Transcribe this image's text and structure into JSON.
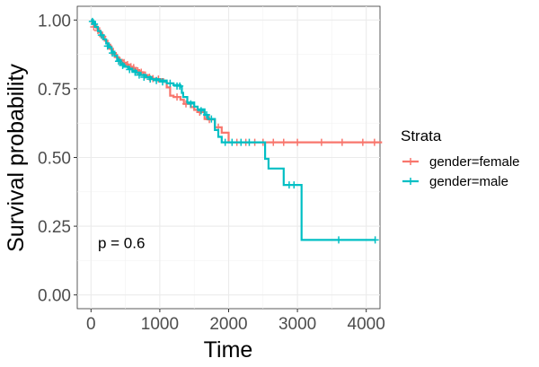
{
  "chart_data": {
    "type": "line",
    "title": "",
    "xlabel": "Time",
    "ylabel": "Survival probability",
    "xlim": [
      -200,
      4200
    ],
    "ylim": [
      -0.05,
      1.05
    ],
    "x_ticks": [
      0,
      1000,
      2000,
      3000,
      4000
    ],
    "y_ticks": [
      0.0,
      0.25,
      0.5,
      0.75,
      1.0
    ],
    "x_tick_labels": [
      "0",
      "1000",
      "2000",
      "3000",
      "4000"
    ],
    "y_tick_labels": [
      "0.00",
      "0.25",
      "0.50",
      "0.75",
      "1.00"
    ],
    "grid": true,
    "annotation": {
      "text": "p = 0.6",
      "x": 100,
      "y": 0.19
    },
    "legend": {
      "title": "Strata",
      "position": "right"
    },
    "series": [
      {
        "name": "gender=female",
        "color": "#F8766D",
        "steps": [
          [
            0,
            1.0
          ],
          [
            15,
            0.99
          ],
          [
            40,
            0.98
          ],
          [
            80,
            0.97
          ],
          [
            120,
            0.955
          ],
          [
            160,
            0.94
          ],
          [
            200,
            0.925
          ],
          [
            240,
            0.91
          ],
          [
            280,
            0.895
          ],
          [
            320,
            0.88
          ],
          [
            360,
            0.865
          ],
          [
            400,
            0.855
          ],
          [
            450,
            0.845
          ],
          [
            500,
            0.838
          ],
          [
            550,
            0.83
          ],
          [
            600,
            0.825
          ],
          [
            650,
            0.818
          ],
          [
            700,
            0.81
          ],
          [
            760,
            0.8
          ],
          [
            820,
            0.793
          ],
          [
            880,
            0.787
          ],
          [
            950,
            0.785
          ],
          [
            1050,
            0.775
          ],
          [
            1100,
            0.755
          ],
          [
            1150,
            0.725
          ],
          [
            1200,
            0.72
          ],
          [
            1300,
            0.71
          ],
          [
            1350,
            0.695
          ],
          [
            1450,
            0.683
          ],
          [
            1500,
            0.673
          ],
          [
            1550,
            0.665
          ],
          [
            1650,
            0.64
          ],
          [
            1700,
            0.638
          ],
          [
            1800,
            0.61
          ],
          [
            1900,
            0.59
          ],
          [
            2000,
            0.555
          ],
          [
            4230,
            0.555
          ]
        ],
        "censored": [
          [
            40,
            0.975
          ],
          [
            100,
            0.962
          ],
          [
            170,
            0.94
          ],
          [
            260,
            0.905
          ],
          [
            340,
            0.875
          ],
          [
            420,
            0.853
          ],
          [
            480,
            0.845
          ],
          [
            530,
            0.838
          ],
          [
            580,
            0.83
          ],
          [
            620,
            0.827
          ],
          [
            680,
            0.815
          ],
          [
            730,
            0.81
          ],
          [
            790,
            0.8
          ],
          [
            850,
            0.792
          ],
          [
            900,
            0.787
          ],
          [
            980,
            0.785
          ],
          [
            1250,
            0.72
          ],
          [
            1380,
            0.695
          ],
          [
            1580,
            0.665
          ],
          [
            1720,
            0.638
          ],
          [
            1850,
            0.61
          ],
          [
            2120,
            0.555
          ],
          [
            2250,
            0.555
          ],
          [
            2380,
            0.555
          ],
          [
            2500,
            0.555
          ],
          [
            2650,
            0.555
          ],
          [
            2800,
            0.555
          ],
          [
            3000,
            0.555
          ],
          [
            3350,
            0.555
          ],
          [
            3650,
            0.555
          ],
          [
            3950,
            0.555
          ],
          [
            4120,
            0.555
          ]
        ]
      },
      {
        "name": "gender=male",
        "color": "#00BFC4",
        "steps": [
          [
            0,
            1.0
          ],
          [
            30,
            0.99
          ],
          [
            60,
            0.975
          ],
          [
            100,
            0.96
          ],
          [
            140,
            0.945
          ],
          [
            180,
            0.93
          ],
          [
            220,
            0.915
          ],
          [
            260,
            0.9
          ],
          [
            300,
            0.885
          ],
          [
            340,
            0.87
          ],
          [
            380,
            0.855
          ],
          [
            430,
            0.84
          ],
          [
            480,
            0.83
          ],
          [
            540,
            0.823
          ],
          [
            600,
            0.815
          ],
          [
            660,
            0.808
          ],
          [
            720,
            0.8
          ],
          [
            800,
            0.792
          ],
          [
            880,
            0.785
          ],
          [
            1000,
            0.78
          ],
          [
            1100,
            0.77
          ],
          [
            1200,
            0.763
          ],
          [
            1300,
            0.758
          ],
          [
            1320,
            0.735
          ],
          [
            1340,
            0.72
          ],
          [
            1400,
            0.7
          ],
          [
            1500,
            0.685
          ],
          [
            1550,
            0.675
          ],
          [
            1650,
            0.655
          ],
          [
            1700,
            0.64
          ],
          [
            1800,
            0.6
          ],
          [
            1850,
            0.575
          ],
          [
            1900,
            0.555
          ],
          [
            2500,
            0.555
          ],
          [
            2530,
            0.495
          ],
          [
            2580,
            0.46
          ],
          [
            2780,
            0.46
          ],
          [
            2800,
            0.4
          ],
          [
            3040,
            0.4
          ],
          [
            3060,
            0.2
          ],
          [
            4130,
            0.2
          ]
        ],
        "censored": [
          [
            20,
            0.995
          ],
          [
            50,
            0.985
          ],
          [
            150,
            0.945
          ],
          [
            240,
            0.905
          ],
          [
            310,
            0.88
          ],
          [
            400,
            0.85
          ],
          [
            460,
            0.835
          ],
          [
            560,
            0.82
          ],
          [
            640,
            0.81
          ],
          [
            700,
            0.8
          ],
          [
            770,
            0.792
          ],
          [
            860,
            0.785
          ],
          [
            950,
            0.78
          ],
          [
            1040,
            0.775
          ],
          [
            1150,
            0.77
          ],
          [
            1250,
            0.76
          ],
          [
            1290,
            0.76
          ],
          [
            1450,
            0.695
          ],
          [
            1600,
            0.67
          ],
          [
            1680,
            0.655
          ],
          [
            1750,
            0.64
          ],
          [
            1950,
            0.555
          ],
          [
            2050,
            0.555
          ],
          [
            2180,
            0.555
          ],
          [
            2300,
            0.555
          ],
          [
            2880,
            0.4
          ],
          [
            2950,
            0.4
          ],
          [
            3600,
            0.2
          ],
          [
            4130,
            0.2
          ]
        ]
      }
    ]
  }
}
